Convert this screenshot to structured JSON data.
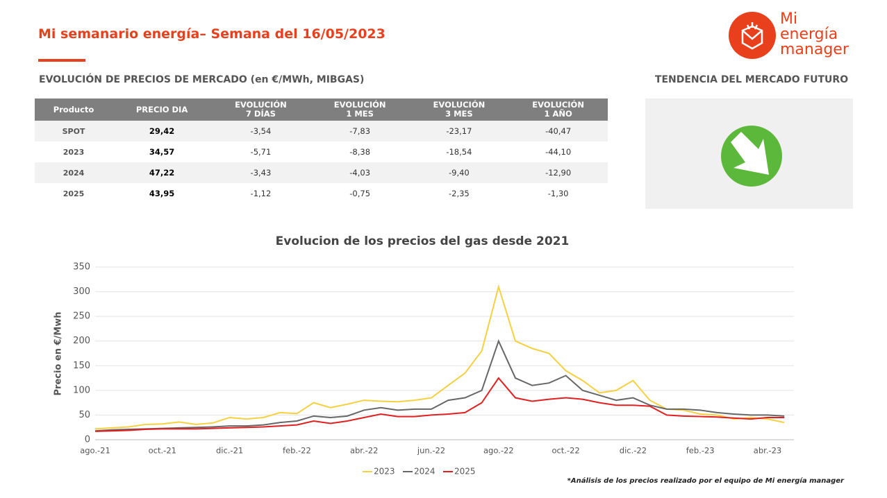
{
  "header": {
    "title": "Mi semanario energía– Semana del 16/05/2023"
  },
  "logo": {
    "lines": [
      "Mi",
      "energía",
      "manager"
    ]
  },
  "table": {
    "title": "EVOLUCIÓN DE PRECIOS DE MERCADO (en €/MWh, MIBGAS)",
    "columns": [
      "Producto",
      "PRECIO DIA",
      "EVOLUCIÓN\n7 DÍAS",
      "EVOLUCIÓN\n1 MES",
      "EVOLUCIÓN\n3 MES",
      "EVOLUCIÓN\n1 AÑO"
    ],
    "rows": [
      [
        "SPOT",
        "29,42",
        "-3,54",
        "-7,83",
        "-23,17",
        "-40,47"
      ],
      [
        "2023",
        "34,57",
        "-5,71",
        "-8,38",
        "-18,54",
        "-44,10"
      ],
      [
        "2024",
        "47,22",
        "-3,43",
        "-4,03",
        "-9,40",
        "-12,90"
      ],
      [
        "2025",
        "43,95",
        "-1,12",
        "-0,75",
        "-2,35",
        "-1,30"
      ]
    ]
  },
  "trend": {
    "title": "TENDENCIA DEL MERCADO FUTURO"
  },
  "chart_data": {
    "type": "line",
    "title": "Evolucion de los precios del gas desde 2021",
    "y_label": "Precio en €/Mwh",
    "categories": [
      "ago.-21",
      null,
      null,
      null,
      "oct.-21",
      null,
      null,
      null,
      "dic.-21",
      null,
      null,
      null,
      "feb.-22",
      null,
      null,
      null,
      "abr.-22",
      null,
      null,
      null,
      "jun.-22",
      null,
      null,
      null,
      "ago.-22",
      null,
      null,
      null,
      "oct.-22",
      null,
      null,
      null,
      "dic.-22",
      null,
      null,
      null,
      "feb.-23",
      null,
      null,
      null,
      "abr.-23",
      null
    ],
    "ylim": [
      0,
      350
    ],
    "yticks": [
      0,
      50,
      100,
      150,
      200,
      250,
      300,
      350
    ],
    "grid": true,
    "legend": "bottom",
    "series": [
      {
        "name": "2023",
        "color": "#f5d040",
        "values": [
          22,
          24,
          26,
          31,
          32,
          36,
          31,
          34,
          45,
          42,
          45,
          55,
          53,
          75,
          65,
          72,
          80,
          78,
          77,
          80,
          85,
          110,
          135,
          180,
          310,
          200,
          185,
          175,
          140,
          120,
          95,
          100,
          120,
          80,
          62,
          60,
          52,
          50,
          42,
          45,
          42,
          35
        ]
      },
      {
        "name": "2024",
        "color": "#666666",
        "values": [
          18,
          20,
          21,
          22,
          23,
          24,
          25,
          26,
          28,
          28,
          30,
          35,
          38,
          48,
          45,
          48,
          60,
          65,
          60,
          62,
          62,
          80,
          85,
          100,
          200,
          125,
          110,
          115,
          130,
          100,
          90,
          80,
          85,
          70,
          62,
          62,
          60,
          55,
          52,
          50,
          50,
          48
        ]
      },
      {
        "name": "2025",
        "color": "#e02020",
        "values": [
          17,
          18,
          19,
          21,
          22,
          22,
          22,
          23,
          24,
          25,
          26,
          28,
          30,
          38,
          33,
          38,
          45,
          52,
          47,
          47,
          50,
          52,
          55,
          75,
          125,
          85,
          78,
          82,
          85,
          82,
          75,
          70,
          70,
          68,
          50,
          48,
          47,
          46,
          44,
          42,
          45,
          45
        ]
      }
    ]
  },
  "footnote": "*Análisis de los precios realizado por el equipo de Mi energía manager"
}
